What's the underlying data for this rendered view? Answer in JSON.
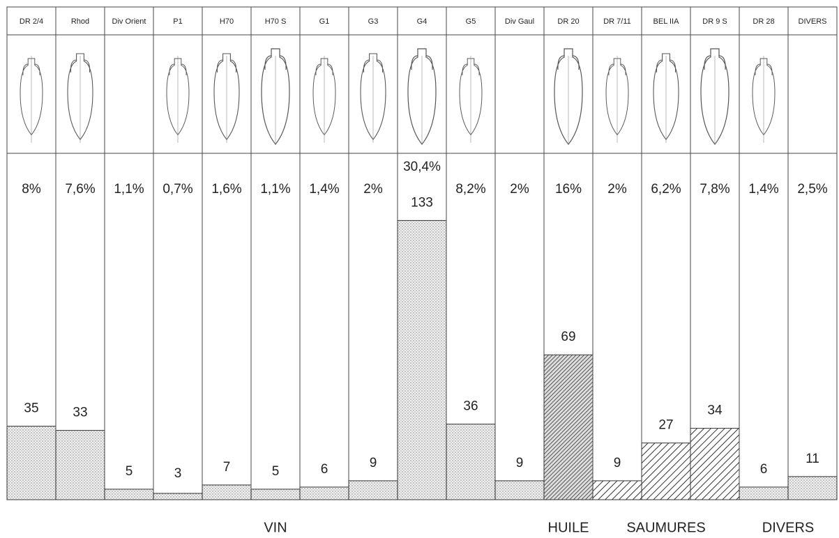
{
  "chart_data": {
    "type": "bar",
    "categories": [
      "DR 2/4",
      "Rhod",
      "Div Orient",
      "P1",
      "H70",
      "H70 S",
      "G1",
      "G3",
      "G4",
      "G5",
      "Div Gaul",
      "DR 20",
      "DR 7/11",
      "BEL IIA",
      "DR 9 S",
      "DR 28",
      "DIVERS"
    ],
    "values": [
      35,
      33,
      5,
      3,
      7,
      5,
      6,
      9,
      133,
      36,
      9,
      69,
      9,
      27,
      34,
      6,
      11
    ],
    "percent_labels": [
      "8%",
      "7,6%",
      "1,1%",
      "0,7%",
      "1,6%",
      "1,1%",
      "1,4%",
      "2%",
      "30,4%",
      "8,2%",
      "2%",
      "16%",
      "2%",
      "6,2%",
      "7,8%",
      "1,4%",
      "2,5%"
    ],
    "groups": [
      {
        "label": "VIN",
        "size": 11,
        "pattern": "dots"
      },
      {
        "label": "HUILE",
        "size": 1,
        "pattern": "dense-hatch"
      },
      {
        "label": "SAUMURES",
        "size": 3,
        "pattern": "hatch"
      },
      {
        "label": "DIVERS",
        "size": 2,
        "pattern": "dots"
      }
    ],
    "ylim": [
      0,
      165
    ]
  }
}
